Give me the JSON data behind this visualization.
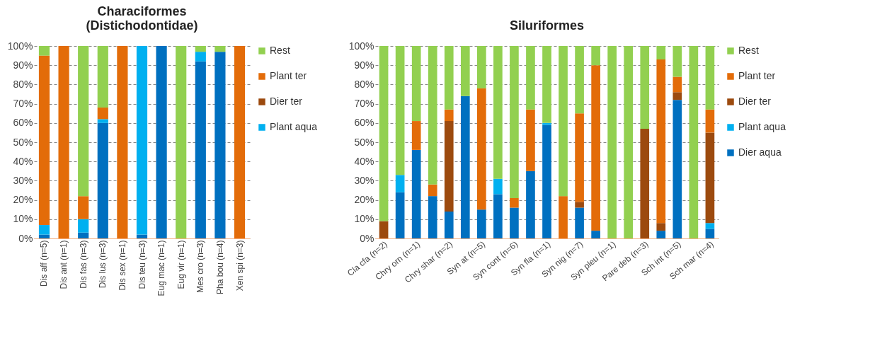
{
  "chart_data": [
    {
      "type": "bar",
      "title": "Characiformes (Distichodontidae)",
      "stacked": true,
      "grid": "y",
      "legend": "right",
      "categories": [
        "Dis aff (n=5)",
        "Dis ant (n=1)",
        "Dis fas (n=3)",
        "Dis lus (n=3)",
        "Dis sex (n=1)",
        "Dis teu (n=3)",
        "Eug mac (n=1)",
        "Eug vir (n=1)",
        "Mes cro (n=3)",
        "Pha bou (n=4)",
        "Xen spi (n=3)"
      ],
      "ylim": [
        0,
        100
      ],
      "yticks": [
        {
          "value": 0,
          "label": "0%"
        },
        {
          "value": 10,
          "label": "10%"
        },
        {
          "value": 20,
          "label": "20%"
        },
        {
          "value": 30,
          "label": "30%"
        },
        {
          "value": 40,
          "label": "40%"
        },
        {
          "value": 50,
          "label": "50%"
        },
        {
          "value": 60,
          "label": "60%"
        },
        {
          "value": 70,
          "label": "70%"
        },
        {
          "value": 80,
          "label": "80%"
        },
        {
          "value": 90,
          "label": "90%"
        },
        {
          "value": 100,
          "label": "100%"
        }
      ],
      "series": [
        {
          "color": "#0070c0",
          "values": [
            2,
            0,
            3,
            60,
            0,
            2,
            100,
            0,
            92,
            97,
            0
          ]
        },
        {
          "name": "Plant aqua",
          "color": "#00b0f0",
          "values": [
            5,
            0,
            7,
            2,
            0,
            98,
            0,
            0,
            5,
            0,
            0
          ]
        },
        {
          "name": "Dier ter",
          "color": "#9c4a0e",
          "values": [
            0,
            0,
            0,
            0,
            0,
            0,
            0,
            0,
            0,
            0,
            0
          ]
        },
        {
          "name": "Plant ter",
          "color": "#e36c09",
          "values": [
            88,
            100,
            12,
            6,
            100,
            0,
            0,
            0,
            0,
            0,
            100
          ]
        },
        {
          "name": "Rest",
          "color": "#92d050",
          "values": [
            5,
            0,
            78,
            32,
            0,
            0,
            0,
            100,
            3,
            3,
            0
          ]
        }
      ]
    },
    {
      "type": "bar",
      "title": "Siluriformes",
      "stacked": true,
      "grid": "y",
      "legend": "right",
      "categories": [
        "Cla cfa (n=2)",
        null,
        "Chry orn (n=1)",
        null,
        "Chry shar (n=2)",
        null,
        "Syn at (n=5)",
        null,
        "Syn cont (n=6)",
        null,
        "Syn fla (n=1)",
        null,
        "Syn nig (n=7)",
        null,
        "Syn pleu (n=1)",
        null,
        "Pare deb (n=3)",
        null,
        "Sch int (n=5)",
        null,
        "Sch mar (n=4)"
      ],
      "ylim": [
        0,
        100
      ],
      "yticks": [
        {
          "value": 0,
          "label": "0%"
        },
        {
          "value": 10,
          "label": "10%"
        },
        {
          "value": 20,
          "label": "20%"
        },
        {
          "value": 30,
          "label": "30%"
        },
        {
          "value": 40,
          "label": "40%"
        },
        {
          "value": 50,
          "label": "50%"
        },
        {
          "value": 60,
          "label": "60%"
        },
        {
          "value": 70,
          "label": "70%"
        },
        {
          "value": 80,
          "label": "80%"
        },
        {
          "value": 90,
          "label": "90%"
        },
        {
          "value": 100,
          "label": "100%"
        }
      ],
      "series": [
        {
          "name": "Dier aqua",
          "color": "#0070c0",
          "values": [
            0,
            24,
            46,
            22,
            14,
            74,
            15,
            23,
            16,
            35,
            59,
            0,
            16,
            4,
            0,
            0,
            0,
            4,
            72,
            0,
            5
          ]
        },
        {
          "name": "Plant aqua",
          "color": "#00b0f0",
          "values": [
            0,
            9,
            0,
            0,
            0,
            0,
            0,
            8,
            0,
            0,
            1,
            0,
            0,
            0,
            0,
            0,
            0,
            0,
            0,
            0,
            3
          ]
        },
        {
          "name": "Dier ter",
          "color": "#9c4a0e",
          "values": [
            9,
            0,
            0,
            0,
            47,
            0,
            0,
            0,
            0,
            0,
            0,
            0,
            3,
            0,
            0,
            0,
            57,
            4,
            4,
            0,
            47
          ]
        },
        {
          "name": "Plant ter",
          "color": "#e36c09",
          "values": [
            0,
            0,
            15,
            6,
            6,
            0,
            63,
            0,
            5,
            32,
            0,
            22,
            46,
            86,
            0,
            0,
            0,
            85,
            8,
            0,
            12
          ]
        },
        {
          "name": "Rest",
          "color": "#92d050",
          "values": [
            91,
            67,
            39,
            72,
            33,
            26,
            22,
            69,
            79,
            33,
            40,
            78,
            35,
            10,
            100,
            100,
            43,
            7,
            16,
            100,
            33
          ]
        }
      ]
    }
  ]
}
